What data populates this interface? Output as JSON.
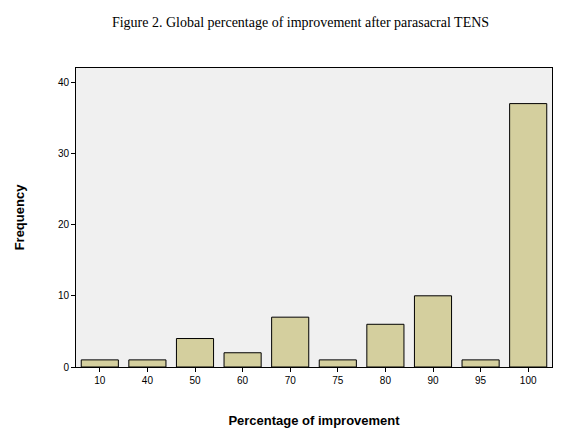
{
  "chart_data": {
    "type": "bar",
    "title": "Figure 2. Global percentage of improvement after parasacral TENS",
    "xlabel": "Percentage of improvement",
    "ylabel": "Frequency",
    "categories": [
      "10",
      "40",
      "50",
      "60",
      "70",
      "75",
      "80",
      "90",
      "95",
      "100"
    ],
    "values": [
      1,
      1,
      4,
      2,
      7,
      1,
      6,
      10,
      1,
      37
    ],
    "color": "#d4cf9e",
    "ylim": [
      0,
      42
    ],
    "yticks": [
      0,
      10,
      20,
      30,
      40
    ],
    "grid": false
  }
}
